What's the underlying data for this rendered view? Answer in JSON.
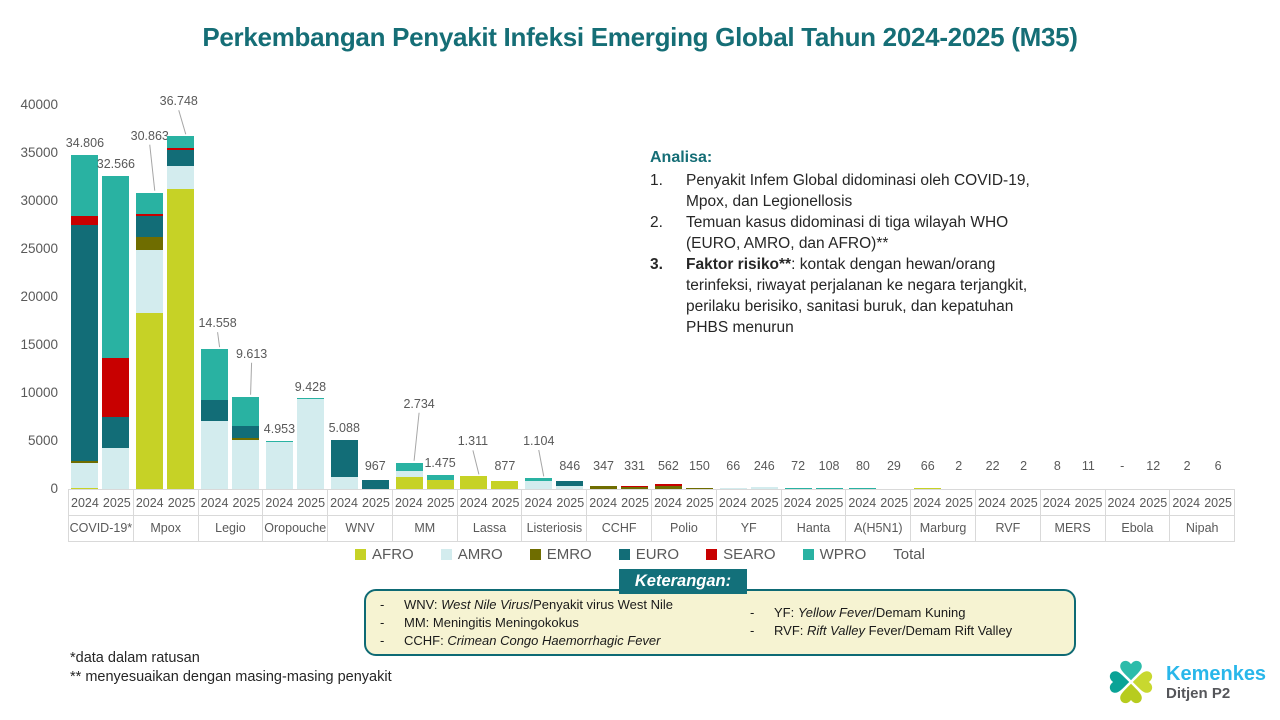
{
  "title": "Perkembangan Penyakit Infeksi Emerging Global Tahun 2024-2025 (M35)",
  "chart_data": {
    "type": "bar",
    "subtype": "stacked",
    "years": [
      "2024",
      "2025"
    ],
    "ylim": [
      0,
      40000
    ],
    "y_ticks": [
      0,
      5000,
      10000,
      15000,
      20000,
      25000,
      30000,
      35000,
      40000
    ],
    "grid": false,
    "legend_position": "bottom",
    "region_order": [
      "AFRO",
      "AMRO",
      "EMRO",
      "EURO",
      "SEARO",
      "WPRO"
    ],
    "region_colors": {
      "AFRO": "#c6d226",
      "AMRO": "#d3ecee",
      "EMRO": "#6f6d00",
      "EURO": "#126d77",
      "SEARO": "#c80000",
      "WPRO": "#29b2a2"
    },
    "legend": [
      {
        "label": "AFRO",
        "region": "AFRO"
      },
      {
        "label": "AMRO",
        "region": "AMRO"
      },
      {
        "label": "EMRO",
        "region": "EMRO"
      },
      {
        "label": "EURO",
        "region": "EURO"
      },
      {
        "label": "SEARO",
        "region": "SEARO"
      },
      {
        "label": "WPRO",
        "region": "WPRO"
      },
      {
        "label": "Total",
        "region": null
      }
    ],
    "groups": [
      {
        "name": "COVID-19*",
        "bars": [
          {
            "year": "2024",
            "value": 34806,
            "label": "34.806",
            "segments": {
              "AFRO": 100,
              "AMRO": 2600,
              "EMRO": 150,
              "EURO": 24650,
              "SEARO": 865,
              "WPRO": 6441
            }
          },
          {
            "year": "2025",
            "value": 32566,
            "label": "32.566",
            "segments": {
              "AMRO": 4240,
              "EURO": 3290,
              "SEARO": 6080,
              "WPRO": 18956
            }
          }
        ]
      },
      {
        "name": "Mpox",
        "bars": [
          {
            "year": "2024",
            "value": 30863,
            "label": "30.863",
            "label_offset": [
              0,
              45
            ],
            "segments": {
              "AFRO": 18300,
              "AMRO": 6600,
              "EMRO": 1400,
              "EURO": 2100,
              "SEARO": 200,
              "WPRO": 2263
            }
          },
          {
            "year": "2025",
            "value": 36748,
            "label": "36.748",
            "label_offset": [
              -2,
              23
            ],
            "segments": {
              "AFRO": 31200,
              "AMRO": 2400,
              "EURO": 1700,
              "SEARO": 250,
              "WPRO": 1198
            }
          }
        ]
      },
      {
        "name": "Legio",
        "bars": [
          {
            "year": "2024",
            "value": 14558,
            "label": "14.558",
            "label_offset": [
              3,
              14
            ],
            "segments": {
              "AMRO": 7100,
              "EURO": 2200,
              "WPRO": 5258
            }
          },
          {
            "year": "2025",
            "value": 9613,
            "label": "9.613",
            "label_offset": [
              6,
              31
            ],
            "segments": {
              "AMRO": 5100,
              "EMRO": 250,
              "EURO": 1250,
              "WPRO": 3013
            }
          }
        ]
      },
      {
        "name": "Oropouche",
        "bars": [
          {
            "year": "2024",
            "value": 4953,
            "label": "4.953",
            "segments": {
              "AMRO": 4870,
              "WPRO": 83
            }
          },
          {
            "year": "2025",
            "value": 9428,
            "label": "9.428",
            "segments": {
              "AMRO": 9330,
              "WPRO": 98
            }
          }
        ]
      },
      {
        "name": "WNV",
        "bars": [
          {
            "year": "2024",
            "value": 5088,
            "label": "5.088",
            "segments": {
              "AMRO": 1300,
              "EURO": 3788
            }
          },
          {
            "year": "2025",
            "value": 967,
            "label": "967",
            "segments": {
              "EURO": 967
            }
          }
        ]
      },
      {
        "name": "MM",
        "bars": [
          {
            "year": "2024",
            "value": 2734,
            "label": "2.734",
            "label_offset": [
              10,
              47
            ],
            "segments": {
              "AFRO": 1250,
              "AMRO": 600,
              "WPRO": 884
            }
          },
          {
            "year": "2025",
            "value": 1475,
            "label": "1.475",
            "segments": {
              "AFRO": 900,
              "WPRO": 575
            }
          }
        ]
      },
      {
        "name": "Lassa",
        "bars": [
          {
            "year": "2024",
            "value": 1311,
            "label": "1.311",
            "label_offset": [
              -1,
              23
            ],
            "segments": {
              "AFRO": 1311
            }
          },
          {
            "year": "2025",
            "value": 877,
            "label": "877",
            "segments": {
              "AFRO": 877
            }
          }
        ]
      },
      {
        "name": "Listeriosis",
        "bars": [
          {
            "year": "2024",
            "value": 1104,
            "label": "1.104",
            "label_offset": [
              0,
              25
            ],
            "segments": {
              "AMRO": 800,
              "WPRO": 304
            }
          },
          {
            "year": "2025",
            "value": 846,
            "label": "846",
            "segments": {
              "AMRO": 300,
              "EURO": 546
            }
          }
        ]
      },
      {
        "name": "CCHF",
        "bars": [
          {
            "year": "2024",
            "value": 347,
            "label": "347",
            "segments": {
              "EMRO": 347
            }
          },
          {
            "year": "2025",
            "value": 331,
            "label": "331",
            "segments": {
              "EMRO": 170,
              "SEARO": 161
            }
          }
        ]
      },
      {
        "name": "Polio",
        "bars": [
          {
            "year": "2024",
            "value": 562,
            "label": "562",
            "segments": {
              "EMRO": 312,
              "SEARO": 250
            }
          },
          {
            "year": "2025",
            "value": 150,
            "label": "150",
            "segments": {
              "EMRO": 150
            }
          }
        ]
      },
      {
        "name": "YF",
        "bars": [
          {
            "year": "2024",
            "value": 66,
            "label": "66",
            "segments": {
              "AMRO": 66
            }
          },
          {
            "year": "2025",
            "value": 246,
            "label": "246",
            "segments": {
              "AMRO": 246
            }
          }
        ]
      },
      {
        "name": "Hanta",
        "bars": [
          {
            "year": "2024",
            "value": 72,
            "label": "72",
            "segments": {
              "WPRO": 72
            }
          },
          {
            "year": "2025",
            "value": 108,
            "label": "108",
            "segments": {
              "WPRO": 108
            }
          }
        ]
      },
      {
        "name": "A(H5N1)",
        "bars": [
          {
            "year": "2024",
            "value": 80,
            "label": "80",
            "segments": {
              "WPRO": 80
            }
          },
          {
            "year": "2025",
            "value": 29,
            "label": "29",
            "segments": {
              "WPRO": 29
            }
          }
        ]
      },
      {
        "name": "Marburg",
        "bars": [
          {
            "year": "2024",
            "value": 66,
            "label": "66",
            "segments": {
              "AFRO": 66
            }
          },
          {
            "year": "2025",
            "value": 2,
            "label": "2",
            "segments": {
              "AFRO": 2
            }
          }
        ]
      },
      {
        "name": "RVF",
        "bars": [
          {
            "year": "2024",
            "value": 22,
            "label": "22",
            "segments": {
              "AFRO": 22
            }
          },
          {
            "year": "2025",
            "value": 2,
            "label": "2",
            "segments": {
              "AFRO": 2
            }
          }
        ]
      },
      {
        "name": "MERS",
        "bars": [
          {
            "year": "2024",
            "value": 8,
            "label": "8",
            "segments": {
              "EMRO": 8
            }
          },
          {
            "year": "2025",
            "value": 11,
            "label": "11",
            "segments": {
              "EMRO": 11
            }
          }
        ]
      },
      {
        "name": "Ebola",
        "bars": [
          {
            "year": "2024",
            "value": 0,
            "label": "-",
            "segments": {}
          },
          {
            "year": "2025",
            "value": 12,
            "label": "12",
            "segments": {
              "AFRO": 12
            }
          }
        ]
      },
      {
        "name": "Nipah",
        "bars": [
          {
            "year": "2024",
            "value": 2,
            "label": "2",
            "segments": {
              "SEARO": 2
            }
          },
          {
            "year": "2025",
            "value": 6,
            "label": "6",
            "segments": {
              "SEARO": 6
            }
          }
        ]
      }
    ]
  },
  "analysis": {
    "heading": "Analisa:",
    "items": [
      {
        "num": "1.",
        "bold": "",
        "text": "Penyakit Infem Global didominasi oleh COVID-19,\nMpox, dan Legionellosis"
      },
      {
        "num": "2.",
        "bold": "",
        "text": "Temuan kasus didominasi di tiga wilayah WHO\n(EURO, AMRO, dan AFRO)**"
      },
      {
        "num": "3.",
        "bold": "Faktor risiko**",
        "text": ": kontak dengan hewan/orang\nterinfeksi, riwayat perjalanan ke negara terjangkit,\nperilaku berisiko, sanitasi buruk, dan kepatuhan\nPHBS menurun"
      }
    ]
  },
  "notes": {
    "heading": "Keterangan:",
    "left_items": [
      {
        "pre": "WNV: ",
        "italic": "West Nile Virus",
        "post": "/Penyakit virus West Nile"
      },
      {
        "pre": "MM: ",
        "italic": "",
        "post": "Meningitis Meningokokus"
      },
      {
        "pre": "CCHF: ",
        "italic": "Crimean Congo Haemorrhagic Fever",
        "post": ""
      }
    ],
    "right_items": [
      {
        "pre": "YF: ",
        "italic": "Yellow Fever",
        "post": "/Demam Kuning"
      },
      {
        "pre": "RVF: ",
        "italic": "Rift Valley",
        "post": " Fever/Demam Rift Valley"
      }
    ]
  },
  "footnotes": [
    "*data dalam ratusan",
    "** menyesuaikan dengan masing-masing penyakit"
  ],
  "logo": {
    "name": "Kemenkes",
    "unit": "Ditjen P2",
    "name_color": "#29b7ea",
    "petal_teal": "#2dbcaa",
    "petal_teal_dark": "#0aa396",
    "petal_green": "#c8d82f",
    "petal_green_dark": "#b7cc1f"
  }
}
